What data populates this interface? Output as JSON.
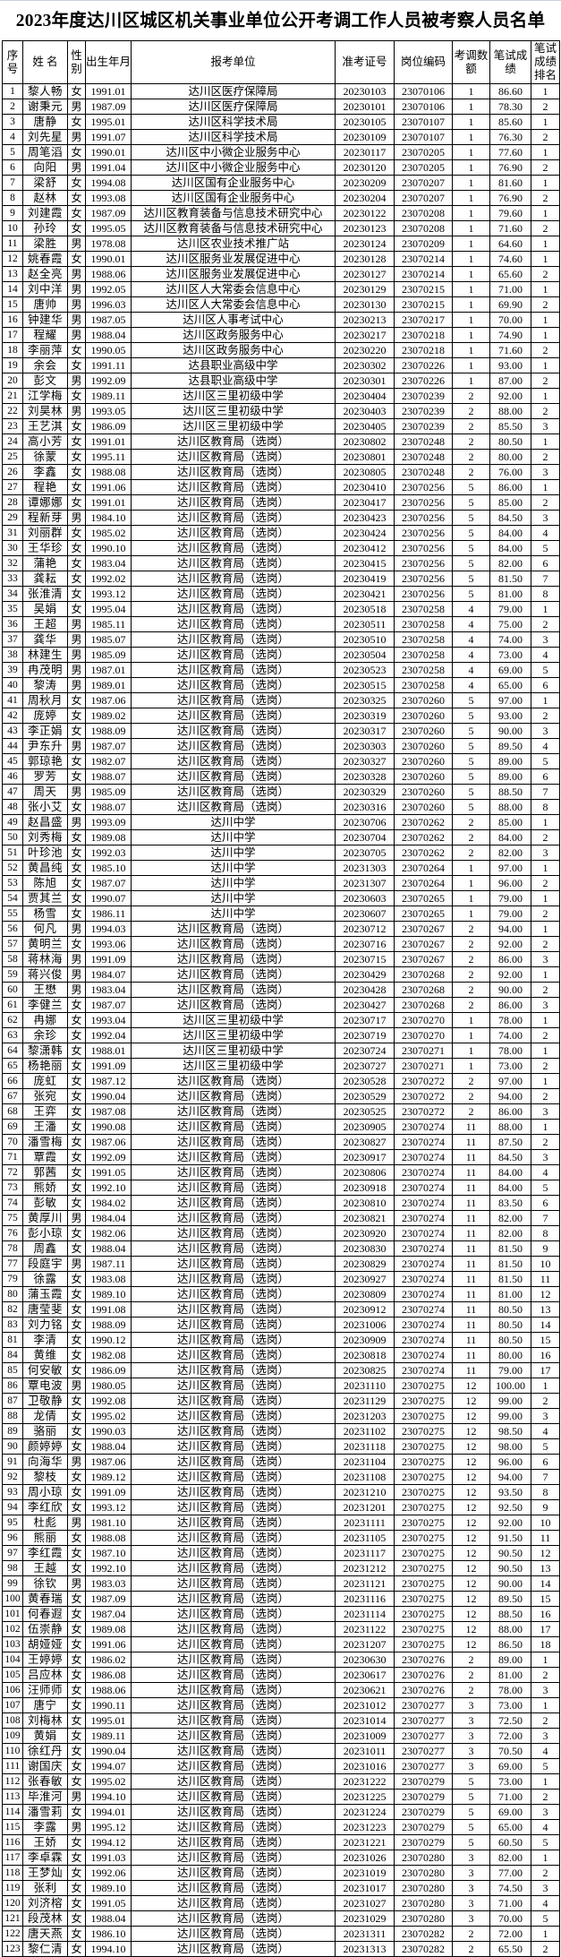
{
  "title": "2023年度达川区城区机关事业单位公开考调工作人员被考察人员名单",
  "columns": [
    "序号",
    "姓 名",
    "性别",
    "出生年月",
    "报考单位",
    "准考证号",
    "岗位编码",
    "考调数额",
    "笔试成绩",
    "笔试成绩排名"
  ],
  "rows": [
    [
      "1",
      "黎人畅",
      "女",
      "1991.01",
      "达川区医疗保障局",
      "20230103",
      "23070106",
      "1",
      "86.60",
      "1"
    ],
    [
      "2",
      "谢秉元",
      "男",
      "1987.09",
      "达川区医疗保障局",
      "20230101",
      "23070106",
      "1",
      "78.30",
      "2"
    ],
    [
      "3",
      "唐静",
      "女",
      "1995.01",
      "达川区科学技术局",
      "20230105",
      "23070107",
      "1",
      "85.60",
      "1"
    ],
    [
      "4",
      "刘先星",
      "男",
      "1991.07",
      "达川区科学技术局",
      "20230109",
      "23070107",
      "1",
      "76.30",
      "2"
    ],
    [
      "5",
      "周笔滔",
      "女",
      "1990.01",
      "达川区中小微企业服务中心",
      "20230117",
      "23070205",
      "1",
      "77.60",
      "1"
    ],
    [
      "6",
      "向阳",
      "男",
      "1991.04",
      "达川区中小微企业服务中心",
      "20230120",
      "23070205",
      "1",
      "76.90",
      "2"
    ],
    [
      "7",
      "梁舒",
      "女",
      "1994.08",
      "达川区国有企业服务中心",
      "20230209",
      "23070207",
      "1",
      "81.60",
      "1"
    ],
    [
      "8",
      "赵林",
      "女",
      "1993.08",
      "达川区国有企业服务中心",
      "20230204",
      "23070207",
      "1",
      "76.90",
      "2"
    ],
    [
      "9",
      "刘建霞",
      "女",
      "1987.09",
      "达川区教育装备与信息技术研究中心",
      "20230122",
      "23070208",
      "1",
      "79.60",
      "1"
    ],
    [
      "10",
      "孙玲",
      "女",
      "1995.05",
      "达川区教育装备与信息技术研究中心",
      "20230123",
      "23070208",
      "1",
      "71.60",
      "2"
    ],
    [
      "11",
      "梁胜",
      "男",
      "1978.08",
      "达川区农业技术推广站",
      "20230124",
      "23070209",
      "1",
      "64.60",
      "1"
    ],
    [
      "12",
      "姚春霞",
      "女",
      "1990.01",
      "达川区服务业发展促进中心",
      "20230128",
      "23070214",
      "1",
      "74.60",
      "1"
    ],
    [
      "13",
      "赵全亮",
      "男",
      "1988.06",
      "达川区服务业发展促进中心",
      "20230127",
      "23070214",
      "1",
      "65.60",
      "2"
    ],
    [
      "14",
      "刘中洋",
      "男",
      "1992.05",
      "达川区人大常委会信息中心",
      "20230129",
      "23070215",
      "1",
      "71.00",
      "1"
    ],
    [
      "15",
      "唐帅",
      "男",
      "1996.03",
      "达川区人大常委会信息中心",
      "20230130",
      "23070215",
      "1",
      "69.90",
      "2"
    ],
    [
      "16",
      "钟建华",
      "男",
      "1987.05",
      "达川区人事考试中心",
      "20230213",
      "23070217",
      "1",
      "70.00",
      "1"
    ],
    [
      "17",
      "程耀",
      "男",
      "1988.04",
      "达川区政务服务中心",
      "20230217",
      "23070218",
      "1",
      "74.90",
      "1"
    ],
    [
      "18",
      "李丽萍",
      "女",
      "1990.05",
      "达川区政务服务中心",
      "20230220",
      "23070218",
      "1",
      "71.60",
      "2"
    ],
    [
      "19",
      "余会",
      "女",
      "1991.11",
      "达县职业高级中学",
      "20230302",
      "23070226",
      "1",
      "93.00",
      "1"
    ],
    [
      "20",
      "彭文",
      "男",
      "1992.09",
      "达县职业高级中学",
      "20230301",
      "23070226",
      "1",
      "87.00",
      "2"
    ],
    [
      "21",
      "江学梅",
      "女",
      "1989.11",
      "达川区三里初级中学",
      "20230404",
      "23070239",
      "2",
      "92.00",
      "1"
    ],
    [
      "22",
      "刘昊林",
      "男",
      "1993.05",
      "达川区三里初级中学",
      "20230403",
      "23070239",
      "2",
      "88.00",
      "2"
    ],
    [
      "23",
      "王艺淇",
      "女",
      "1986.09",
      "达川区三里初级中学",
      "20230405",
      "23070239",
      "2",
      "85.50",
      "3"
    ],
    [
      "24",
      "高小芳",
      "女",
      "1991.01",
      "达川区教育局（选岗）",
      "20230802",
      "23070248",
      "2",
      "80.50",
      "1"
    ],
    [
      "25",
      "徐蒙",
      "女",
      "1995.11",
      "达川区教育局（选岗）",
      "20230801",
      "23070248",
      "2",
      "80.00",
      "2"
    ],
    [
      "26",
      "李鑫",
      "女",
      "1988.08",
      "达川区教育局（选岗）",
      "20230805",
      "23070248",
      "2",
      "76.00",
      "3"
    ],
    [
      "27",
      "程艳",
      "女",
      "1991.06",
      "达川区教育局（选岗）",
      "20230410",
      "23070256",
      "5",
      "86.00",
      "1"
    ],
    [
      "28",
      "谭娜娜",
      "女",
      "1991.01",
      "达川区教育局（选岗）",
      "20230417",
      "23070256",
      "5",
      "85.00",
      "2"
    ],
    [
      "29",
      "程新芽",
      "男",
      "1984.10",
      "达川区教育局（选岗）",
      "20230423",
      "23070256",
      "5",
      "84.50",
      "3"
    ],
    [
      "31",
      "刘丽群",
      "女",
      "1985.02",
      "达川区教育局（选岗）",
      "20230424",
      "23070256",
      "5",
      "84.00",
      "4"
    ],
    [
      "30",
      "王华珍",
      "女",
      "1990.10",
      "达川区教育局（选岗）",
      "20230412",
      "23070256",
      "5",
      "84.00",
      "5"
    ],
    [
      "32",
      "蒲艳",
      "女",
      "1983.04",
      "达川区教育局（选岗）",
      "20230415",
      "23070256",
      "5",
      "82.00",
      "6"
    ],
    [
      "33",
      "龚耘",
      "女",
      "1992.02",
      "达川区教育局（选岗）",
      "20230419",
      "23070256",
      "5",
      "81.50",
      "7"
    ],
    [
      "34",
      "张淮清",
      "女",
      "1993.12",
      "达川区教育局（选岗）",
      "20230421",
      "23070256",
      "5",
      "81.00",
      "8"
    ],
    [
      "35",
      "吴娟",
      "女",
      "1995.04",
      "达川区教育局（选岗）",
      "20230518",
      "23070258",
      "4",
      "79.00",
      "1"
    ],
    [
      "36",
      "王超",
      "男",
      "1985.11",
      "达川区教育局（选岗）",
      "20230511",
      "23070258",
      "4",
      "75.00",
      "2"
    ],
    [
      "37",
      "龚华",
      "男",
      "1985.07",
      "达川区教育局（选岗）",
      "20230510",
      "23070258",
      "4",
      "74.00",
      "3"
    ],
    [
      "38",
      "林建生",
      "男",
      "1985.09",
      "达川区教育局（选岗）",
      "20230504",
      "23070258",
      "4",
      "73.00",
      "4"
    ],
    [
      "39",
      "冉茂明",
      "男",
      "1987.01",
      "达川区教育局（选岗）",
      "20230523",
      "23070258",
      "4",
      "69.00",
      "5"
    ],
    [
      "40",
      "黎涛",
      "男",
      "1989.01",
      "达川区教育局（选岗）",
      "20230515",
      "23070258",
      "4",
      "65.00",
      "6"
    ],
    [
      "41",
      "周秋月",
      "女",
      "1987.06",
      "达川区教育局（选岗）",
      "20230325",
      "23070260",
      "5",
      "97.00",
      "1"
    ],
    [
      "42",
      "庞婷",
      "女",
      "1989.02",
      "达川区教育局（选岗）",
      "20230319",
      "23070260",
      "5",
      "93.00",
      "2"
    ],
    [
      "43",
      "李正娟",
      "女",
      "1988.09",
      "达川区教育局（选岗）",
      "20230317",
      "23070260",
      "5",
      "90.00",
      "3"
    ],
    [
      "44",
      "尹东升",
      "男",
      "1987.07",
      "达川区教育局（选岗）",
      "20230303",
      "23070260",
      "5",
      "89.50",
      "4"
    ],
    [
      "45",
      "郭琼艳",
      "女",
      "1982.07",
      "达川区教育局（选岗）",
      "20230327",
      "23070260",
      "5",
      "89.00",
      "5"
    ],
    [
      "46",
      "罗芳",
      "女",
      "1988.07",
      "达川区教育局（选岗）",
      "20230328",
      "23070260",
      "5",
      "89.00",
      "6"
    ],
    [
      "47",
      "周天",
      "男",
      "1985.09",
      "达川区教育局（选岗）",
      "20230329",
      "23070260",
      "5",
      "88.50",
      "7"
    ],
    [
      "48",
      "张小艾",
      "女",
      "1988.07",
      "达川区教育局（选岗）",
      "20230316",
      "23070260",
      "5",
      "88.00",
      "8"
    ],
    [
      "49",
      "赵昌盛",
      "男",
      "1993.09",
      "达川中学",
      "20230706",
      "23070262",
      "2",
      "85.00",
      "1"
    ],
    [
      "50",
      "刘秀梅",
      "女",
      "1989.08",
      "达川中学",
      "20230704",
      "23070262",
      "2",
      "84.00",
      "2"
    ],
    [
      "51",
      "叶珍池",
      "女",
      "1992.03",
      "达川中学",
      "20230705",
      "23070262",
      "2",
      "82.00",
      "3"
    ],
    [
      "52",
      "黄昌纯",
      "女",
      "1985.10",
      "达川中学",
      "20231303",
      "23070264",
      "1",
      "97.00",
      "1"
    ],
    [
      "53",
      "陈旭",
      "女",
      "1987.07",
      "达川中学",
      "20231307",
      "23070264",
      "1",
      "96.00",
      "2"
    ],
    [
      "54",
      "贾其兰",
      "女",
      "1990.07",
      "达川中学",
      "20230603",
      "23070265",
      "1",
      "79.00",
      "1"
    ],
    [
      "55",
      "杨雪",
      "女",
      "1986.11",
      "达川中学",
      "20230607",
      "23070265",
      "1",
      "79.00",
      "2"
    ],
    [
      "56",
      "何凡",
      "男",
      "1994.03",
      "达川区教育局（选岗）",
      "20230712",
      "23070267",
      "2",
      "94.00",
      "1"
    ],
    [
      "57",
      "黄明兰",
      "女",
      "1993.06",
      "达川区教育局（选岗）",
      "20230716",
      "23070267",
      "2",
      "92.00",
      "2"
    ],
    [
      "58",
      "蒋林海",
      "男",
      "1991.09",
      "达川区教育局（选岗）",
      "20230715",
      "23070267",
      "2",
      "86.00",
      "3"
    ],
    [
      "59",
      "蒋兴俊",
      "男",
      "1984.07",
      "达川区教育局（选岗）",
      "20230429",
      "23070268",
      "2",
      "92.00",
      "1"
    ],
    [
      "60",
      "王懋",
      "男",
      "1983.04",
      "达川区教育局（选岗）",
      "20230428",
      "23070268",
      "2",
      "90.00",
      "2"
    ],
    [
      "61",
      "李健兰",
      "女",
      "1987.07",
      "达川区教育局（选岗）",
      "20230427",
      "23070268",
      "2",
      "86.00",
      "3"
    ],
    [
      "62",
      "冉娜",
      "女",
      "1993.04",
      "达川区三里初级中学",
      "20230717",
      "23070270",
      "1",
      "78.00",
      "1"
    ],
    [
      "63",
      "余珍",
      "女",
      "1992.04",
      "达川区三里初级中学",
      "20230719",
      "23070270",
      "1",
      "74.00",
      "2"
    ],
    [
      "64",
      "黎潇韩",
      "女",
      "1988.01",
      "达川区三里初级中学",
      "20230724",
      "23070271",
      "1",
      "78.00",
      "1"
    ],
    [
      "65",
      "杨艳丽",
      "女",
      "1991.09",
      "达川区三里初级中学",
      "20230727",
      "23070271",
      "1",
      "73.00",
      "2"
    ],
    [
      "66",
      "庞虹",
      "女",
      "1987.12",
      "达川区教育局（选岗）",
      "20230528",
      "23070272",
      "2",
      "97.00",
      "1"
    ],
    [
      "67",
      "张宛",
      "女",
      "1990.04",
      "达川区教育局（选岗）",
      "20230529",
      "23070272",
      "2",
      "94.00",
      "2"
    ],
    [
      "68",
      "王弈",
      "女",
      "1987.08",
      "达川区教育局（选岗）",
      "20230525",
      "23070272",
      "2",
      "86.00",
      "3"
    ],
    [
      "69",
      "王潘",
      "女",
      "1990.08",
      "达川区教育局（选岗）",
      "20230905",
      "23070274",
      "11",
      "88.00",
      "1"
    ],
    [
      "70",
      "潘雪梅",
      "女",
      "1987.06",
      "达川区教育局（选岗）",
      "20230827",
      "23070274",
      "11",
      "87.50",
      "2"
    ],
    [
      "71",
      "覃霞",
      "女",
      "1992.09",
      "达川区教育局（选岗）",
      "20230917",
      "23070274",
      "11",
      "84.50",
      "3"
    ],
    [
      "72",
      "郭茜",
      "女",
      "1991.05",
      "达川区教育局（选岗）",
      "20230806",
      "23070274",
      "11",
      "84.00",
      "4"
    ],
    [
      "73",
      "熊娇",
      "女",
      "1992.10",
      "达川区教育局（选岗）",
      "20230918",
      "23070274",
      "11",
      "84.00",
      "5"
    ],
    [
      "74",
      "彭敏",
      "女",
      "1984.02",
      "达川区教育局（选岗）",
      "20230810",
      "23070274",
      "11",
      "83.50",
      "6"
    ],
    [
      "75",
      "黄厚川",
      "男",
      "1984.04",
      "达川区教育局（选岗）",
      "20230821",
      "23070274",
      "11",
      "82.00",
      "7"
    ],
    [
      "76",
      "彭小琼",
      "女",
      "1982.06",
      "达川区教育局（选岗）",
      "20230920",
      "23070274",
      "11",
      "82.00",
      "8"
    ],
    [
      "78",
      "周鑫",
      "女",
      "1988.04",
      "达川区教育局（选岗）",
      "20230830",
      "23070274",
      "11",
      "81.50",
      "9"
    ],
    [
      "77",
      "段庭宇",
      "男",
      "1987.11",
      "达川区教育局（选岗）",
      "20230829",
      "23070274",
      "11",
      "81.50",
      "10"
    ],
    [
      "79",
      "徐露",
      "女",
      "1983.08",
      "达川区教育局（选岗）",
      "20230927",
      "23070274",
      "11",
      "81.50",
      "11"
    ],
    [
      "80",
      "蒲玉霞",
      "女",
      "1989.10",
      "达川区教育局（选岗）",
      "20230809",
      "23070274",
      "11",
      "81.00",
      "12"
    ],
    [
      "82",
      "唐莹斐",
      "女",
      "1991.08",
      "达川区教育局（选岗）",
      "20230912",
      "23070274",
      "11",
      "80.50",
      "13"
    ],
    [
      "83",
      "刘力铭",
      "女",
      "1988.09",
      "达川区教育局（选岗）",
      "20231006",
      "23070274",
      "11",
      "80.50",
      "14"
    ],
    [
      "81",
      "李清",
      "女",
      "1990.12",
      "达川区教育局（选岗）",
      "20230909",
      "23070274",
      "11",
      "80.50",
      "15"
    ],
    [
      "84",
      "黄维",
      "女",
      "1982.08",
      "达川区教育局（选岗）",
      "20230818",
      "23070274",
      "11",
      "80.00",
      "16"
    ],
    [
      "85",
      "何安敏",
      "女",
      "1986.09",
      "达川区教育局（选岗）",
      "20230825",
      "23070274",
      "11",
      "79.00",
      "17"
    ],
    [
      "86",
      "覃电波",
      "男",
      "1980.05",
      "达川区教育局（选岗）",
      "20231110",
      "23070275",
      "12",
      "100.00",
      "1"
    ],
    [
      "87",
      "卫敬静",
      "女",
      "1992.08",
      "达川区教育局（选岗）",
      "20231129",
      "23070275",
      "12",
      "99.00",
      "2"
    ],
    [
      "88",
      "龙倩",
      "女",
      "1995.02",
      "达川区教育局（选岗）",
      "20231203",
      "23070275",
      "12",
      "99.00",
      "3"
    ],
    [
      "89",
      "骆丽",
      "女",
      "1990.03",
      "达川区教育局（选岗）",
      "20231102",
      "23070275",
      "12",
      "98.50",
      "4"
    ],
    [
      "90",
      "颜婷婷",
      "女",
      "1988.04",
      "达川区教育局（选岗）",
      "20231118",
      "23070275",
      "12",
      "98.00",
      "5"
    ],
    [
      "91",
      "向海华",
      "男",
      "1987.06",
      "达川区教育局（选岗）",
      "20231104",
      "23070275",
      "12",
      "96.00",
      "6"
    ],
    [
      "92",
      "黎枝",
      "女",
      "1989.12",
      "达川区教育局（选岗）",
      "20231108",
      "23070275",
      "12",
      "94.00",
      "7"
    ],
    [
      "93",
      "周小琼",
      "女",
      "1991.09",
      "达川区教育局（选岗）",
      "20231210",
      "23070275",
      "12",
      "93.50",
      "8"
    ],
    [
      "94",
      "李红欣",
      "女",
      "1993.12",
      "达川区教育局（选岗）",
      "20231201",
      "23070275",
      "12",
      "92.50",
      "9"
    ],
    [
      "95",
      "杜彪",
      "男",
      "1981.10",
      "达川区教育局（选岗）",
      "20231111",
      "23070275",
      "12",
      "92.00",
      "10"
    ],
    [
      "96",
      "熊丽",
      "女",
      "1988.08",
      "达川区教育局（选岗）",
      "20231105",
      "23070275",
      "12",
      "91.50",
      "11"
    ],
    [
      "97",
      "李红霞",
      "女",
      "1987.10",
      "达川区教育局（选岗）",
      "20231117",
      "23070275",
      "12",
      "90.50",
      "12"
    ],
    [
      "98",
      "王越",
      "女",
      "1992.10",
      "达川区教育局（选岗）",
      "20231212",
      "23070275",
      "12",
      "90.50",
      "13"
    ],
    [
      "99",
      "徐钦",
      "男",
      "1983.03",
      "达川区教育局（选岗）",
      "20231121",
      "23070275",
      "12",
      "90.00",
      "14"
    ],
    [
      "100",
      "黄春瑞",
      "女",
      "1987.09",
      "达川区教育局（选岗）",
      "20231116",
      "23070275",
      "12",
      "89.50",
      "15"
    ],
    [
      "101",
      "何春遐",
      "女",
      "1987.04",
      "达川区教育局（选岗）",
      "20231114",
      "23070275",
      "12",
      "88.50",
      "16"
    ],
    [
      "102",
      "伍崇静",
      "女",
      "1989.08",
      "达川区教育局（选岗）",
      "20231122",
      "23070275",
      "12",
      "88.00",
      "17"
    ],
    [
      "103",
      "胡娅娅",
      "女",
      "1991.06",
      "达川区教育局（选岗）",
      "20231207",
      "23070275",
      "12",
      "86.50",
      "18"
    ],
    [
      "104",
      "王婷婷",
      "女",
      "1986.02",
      "达川区教育局（选岗）",
      "20230630",
      "23070276",
      "2",
      "89.00",
      "1"
    ],
    [
      "105",
      "吕应林",
      "女",
      "1986.08",
      "达川区教育局（选岗）",
      "20230617",
      "23070276",
      "2",
      "81.00",
      "2"
    ],
    [
      "106",
      "汪师师",
      "女",
      "1988.06",
      "达川区教育局（选岗）",
      "20230621",
      "23070276",
      "2",
      "78.00",
      "3"
    ],
    [
      "107",
      "唐宁",
      "女",
      "1990.11",
      "达川区教育局（选岗）",
      "20231012",
      "23070277",
      "3",
      "73.00",
      "1"
    ],
    [
      "108",
      "刘梅林",
      "女",
      "1995.01",
      "达川区教育局（选岗）",
      "20231014",
      "23070277",
      "3",
      "72.50",
      "2"
    ],
    [
      "109",
      "黄娟",
      "女",
      "1989.11",
      "达川区教育局（选岗）",
      "20231009",
      "23070277",
      "3",
      "72.00",
      "3"
    ],
    [
      "110",
      "徐红丹",
      "女",
      "1990.04",
      "达川区教育局（选岗）",
      "20231011",
      "23070277",
      "3",
      "70.50",
      "4"
    ],
    [
      "111",
      "谢国庆",
      "女",
      "1994.07",
      "达川区教育局（选岗）",
      "20231016",
      "23070277",
      "3",
      "69.00",
      "5"
    ],
    [
      "112",
      "张春敏",
      "女",
      "1995.02",
      "达川区教育局（选岗）",
      "20231222",
      "23070279",
      "5",
      "73.00",
      "1"
    ],
    [
      "113",
      "毕淮河",
      "男",
      "1994.10",
      "达川区教育局（选岗）",
      "20231225",
      "23070279",
      "5",
      "71.00",
      "2"
    ],
    [
      "114",
      "潘雪莉",
      "女",
      "1994.01",
      "达川区教育局（选岗）",
      "20231224",
      "23070279",
      "5",
      "69.00",
      "3"
    ],
    [
      "115",
      "李露",
      "男",
      "1995.12",
      "达川区教育局（选岗）",
      "20231223",
      "23070279",
      "5",
      "65.00",
      "4"
    ],
    [
      "116",
      "王娇",
      "女",
      "1994.12",
      "达川区教育局（选岗）",
      "20231221",
      "23070279",
      "5",
      "60.50",
      "5"
    ],
    [
      "117",
      "李卓霖",
      "女",
      "1991.03",
      "达川区教育局（选岗）",
      "20231026",
      "23070280",
      "3",
      "82.00",
      "1"
    ],
    [
      "118",
      "王梦灿",
      "女",
      "1992.06",
      "达川区教育局（选岗）",
      "20231019",
      "23070280",
      "3",
      "77.00",
      "2"
    ],
    [
      "119",
      "张利",
      "女",
      "1989.10",
      "达川区教育局（选岗）",
      "20231017",
      "23070280",
      "3",
      "74.50",
      "3"
    ],
    [
      "120",
      "刘济榕",
      "女",
      "1991.05",
      "达川区教育局（选岗）",
      "20231027",
      "23070280",
      "3",
      "71.00",
      "4"
    ],
    [
      "121",
      "段茂林",
      "女",
      "1988.04",
      "达川区教育局（选岗）",
      "20231029",
      "23070280",
      "3",
      "70.00",
      "5"
    ],
    [
      "122",
      "唐天燕",
      "女",
      "1986.10",
      "达川区教育局（选岗）",
      "20231311",
      "23070282",
      "2",
      "72.00",
      "1"
    ],
    [
      "123",
      "黎仁清",
      "女",
      "1994.10",
      "达川区教育局（选岗）",
      "20231313",
      "23070282",
      "2",
      "65.50",
      "2"
    ]
  ]
}
